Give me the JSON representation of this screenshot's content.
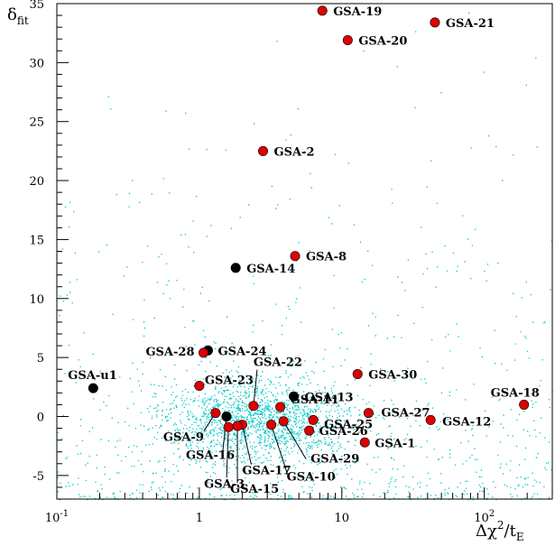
{
  "chart_data": {
    "type": "scatter",
    "x_scale": "log",
    "xlim": [
      0.1,
      300
    ],
    "ylim": [
      -7,
      35
    ],
    "x_ticks": [
      {
        "value": 0.1,
        "base": "10",
        "exp": "-1"
      },
      {
        "value": 1,
        "base": "1",
        "exp": ""
      },
      {
        "value": 10,
        "base": "10",
        "exp": ""
      },
      {
        "value": 100,
        "base": "10",
        "exp": "2"
      }
    ],
    "y_ticks": [
      -5,
      0,
      5,
      10,
      15,
      20,
      25,
      30,
      35
    ],
    "xlabel": {
      "prefix": "Δχ",
      "sup": "2",
      "mid": "/t",
      "sub": "E"
    },
    "ylabel": {
      "main": "δ",
      "sub": "fit"
    },
    "background_color": "#00c8c8",
    "highlight_color": "#dd0000",
    "black_color": "#000000",
    "background_points": "dense cloud of simulated events",
    "points": [
      {
        "name": "GSA-19",
        "x": 7.3,
        "y": 34.4,
        "color": "red"
      },
      {
        "name": "GSA-21",
        "x": 45,
        "y": 33.4,
        "color": "red"
      },
      {
        "name": "GSA-20",
        "x": 11,
        "y": 31.9,
        "color": "red"
      },
      {
        "name": "GSA-2",
        "x": 2.8,
        "y": 22.5,
        "color": "red"
      },
      {
        "name": "GSA-8",
        "x": 4.7,
        "y": 13.6,
        "color": "red"
      },
      {
        "name": "GSA-14",
        "x": 1.8,
        "y": 12.6,
        "color": "black"
      },
      {
        "name": "GSA-24",
        "x": 1.15,
        "y": 5.6,
        "color": "black"
      },
      {
        "name": "GSA-28",
        "x": 1.07,
        "y": 5.4,
        "color": "red"
      },
      {
        "name": "GSA-u1",
        "x": 0.18,
        "y": 2.4,
        "color": "black"
      },
      {
        "name": "GSA-23",
        "x": 1.0,
        "y": 2.6,
        "color": "red"
      },
      {
        "name": "GSA-30",
        "x": 12.9,
        "y": 3.6,
        "color": "red"
      },
      {
        "name": "GSA-22",
        "x": 2.4,
        "y": 0.9,
        "color": "red"
      },
      {
        "name": "GSA-13",
        "x": 4.6,
        "y": 1.7,
        "color": "black"
      },
      {
        "name": "GSA-11",
        "x": 3.7,
        "y": 0.8,
        "color": "red"
      },
      {
        "name": "GSA-18",
        "x": 190,
        "y": 1.0,
        "color": "red"
      },
      {
        "name": "GSA-27",
        "x": 15.4,
        "y": 0.3,
        "color": "red"
      },
      {
        "name": "GSA-12",
        "x": 42,
        "y": -0.3,
        "color": "red"
      },
      {
        "name": "GSA-25",
        "x": 6.3,
        "y": -0.3,
        "color": "red"
      },
      {
        "name": "GSA-26",
        "x": 5.9,
        "y": -1.2,
        "color": "red"
      },
      {
        "name": "GSA-1",
        "x": 14.5,
        "y": -2.2,
        "color": "red"
      },
      {
        "name": "GSA-29",
        "x": 3.9,
        "y": -0.4,
        "color": "red"
      },
      {
        "name": "GSA-10",
        "x": 3.2,
        "y": -0.7,
        "color": "red"
      },
      {
        "name": "GSA-17",
        "x": 2.0,
        "y": -0.7,
        "color": "red"
      },
      {
        "name": "GSA-15",
        "x": 1.85,
        "y": -0.8,
        "color": "red"
      },
      {
        "name": "GSA-3",
        "x": 1.6,
        "y": -0.9,
        "color": "red"
      },
      {
        "name": "GSA-16",
        "x": 1.55,
        "y": 0.0,
        "color": "black"
      },
      {
        "name": "GSA-9",
        "x": 1.3,
        "y": 0.3,
        "color": "red"
      }
    ]
  }
}
